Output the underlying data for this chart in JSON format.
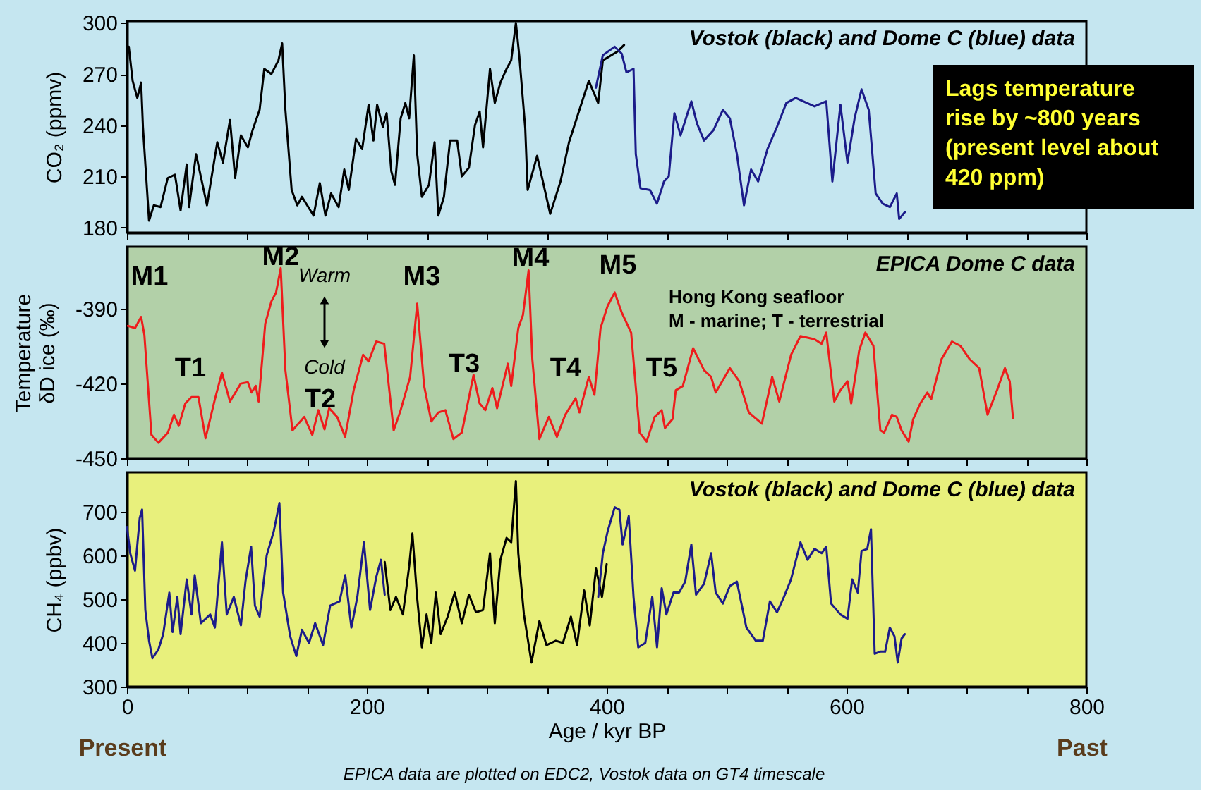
{
  "chart_data": [
    {
      "type": "line",
      "title": "Vostok (black) and Dome C (blue) data",
      "ylabel": "CO₂ (ppmv)",
      "xlim": [
        0,
        800
      ],
      "ylim": [
        177,
        301
      ],
      "xticks": [
        0,
        {
          "value": 50,
          "label": null
        },
        {
          "value": 100,
          "label": null
        },
        {
          "value": 150,
          "label": null
        },
        200,
        {
          "value": 250,
          "label": null
        },
        {
          "value": 300,
          "label": null
        },
        {
          "value": 350,
          "label": null
        },
        400,
        {
          "value": 450,
          "label": null
        },
        {
          "value": 500,
          "label": null
        },
        {
          "value": 550,
          "label": null
        },
        600,
        {
          "value": 650,
          "label": null
        },
        {
          "value": 700,
          "label": null
        },
        {
          "value": 750,
          "label": null
        },
        800
      ],
      "yticks": [
        180,
        210,
        240,
        270,
        300
      ],
      "tick_labels": "y",
      "series": [
        {
          "color": "#000000",
          "x": [
            1.5,
            4.7,
            8.6,
            11.8,
            13.3,
            18.4,
            22.4,
            28,
            34,
            40,
            44.7,
            49.8,
            51.8,
            57.6,
            66.7,
            75.3,
            80,
            85.9,
            90.2,
            95,
            100.8,
            104.7,
            110.6,
            114.5,
            120.4,
            126.3,
            129.4,
            132.1,
            137.3,
            142,
            145.9,
            155.6,
            160.8,
            165.5,
            170.2,
            176.5,
            181.2,
            185,
            191,
            196.1,
            201.5,
            205.5,
            208.6,
            213.3,
            216.5,
            220.4,
            223.5,
            228.2,
            232.1,
            235.3,
            239.2,
            242,
            245.9,
            251.8,
            256.5,
            259.6,
            264.3,
            269.4,
            275.3,
            279.2,
            285.1,
            290.2,
            294.1,
            296.9,
            302.7,
            306.7,
            311.4,
            316.5,
            320.4,
            324.3,
            327.1,
            332.1,
            334.1,
            342,
            352.9,
            361.5,
            368.6,
            377.3,
            385.1,
            392.9,
            396.8,
            408.6,
            414.5
          ],
          "values": [
            286,
            266,
            256,
            265,
            239,
            184,
            193,
            192,
            209,
            211,
            190,
            217,
            192,
            223,
            193,
            230,
            218,
            243,
            209,
            234,
            227,
            237,
            249,
            273,
            270,
            278,
            288,
            249,
            202,
            193,
            198,
            187,
            206,
            187,
            200,
            192,
            214,
            202,
            232,
            226,
            252,
            231,
            252,
            239,
            247,
            213,
            205,
            244,
            253,
            244,
            281,
            223,
            198,
            205,
            230,
            187,
            198,
            231,
            231,
            210,
            215,
            240,
            248,
            227,
            273,
            253,
            265,
            273,
            278,
            300,
            281,
            238,
            202,
            222,
            188,
            207,
            230,
            249,
            266,
            253,
            278,
            283,
            287
          ]
        },
        {
          "color": "#1c1c8a",
          "x": [
            391,
            396.8,
            406.7,
            412.5,
            416.5,
            422.4,
            424.3,
            428.2,
            436.1,
            441.9,
            447.8,
            451.8,
            456.5,
            461.6,
            470.6,
            475.3,
            481.2,
            489,
            496.9,
            502.7,
            508.6,
            514.5,
            520.4,
            526.3,
            534.1,
            542,
            549.8,
            557.6,
            573.3,
            583.1,
            588.2,
            594.9,
            600.8,
            606.7,
            612.5,
            618.5,
            624.3,
            630.2,
            636.1,
            641.9,
            643.9,
            648.6
          ],
          "values": [
            262,
            281,
            286,
            282,
            271,
            273,
            223,
            203,
            202,
            194,
            207,
            210,
            247,
            234,
            254,
            241,
            231,
            237,
            249,
            244,
            223,
            193,
            214,
            207,
            226,
            239,
            253,
            256,
            251,
            254,
            207,
            252,
            218,
            244,
            261,
            249,
            200,
            194,
            192,
            200,
            185,
            189
          ]
        }
      ],
      "annotations": [
        "Lags temperature\nrise by ~800 years\n(present level about\n420 ppm)"
      ]
    },
    {
      "type": "line",
      "title": "EPICA Dome C data",
      "ylabel": "Temperature\nδD ice (‰)",
      "xlim": [
        0,
        800
      ],
      "ylim": [
        -450,
        -365
      ],
      "xticks": [
        0,
        {
          "value": 50,
          "label": null
        },
        {
          "value": 100,
          "label": null
        },
        {
          "value": 150,
          "label": null
        },
        200,
        {
          "value": 250,
          "label": null
        },
        {
          "value": 300,
          "label": null
        },
        {
          "value": 350,
          "label": null
        },
        400,
        {
          "value": 450,
          "label": null
        },
        {
          "value": 500,
          "label": null
        },
        {
          "value": 550,
          "label": null
        },
        600,
        {
          "value": 650,
          "label": null
        },
        {
          "value": 700,
          "label": null
        },
        {
          "value": 750,
          "label": null
        },
        800
      ],
      "yticks": [
        -450,
        -420,
        -390
      ],
      "tick_labels": "y",
      "series": [
        {
          "color": "#ee1c1c",
          "x": [
            0.8,
            6.7,
            11.8,
            14.5,
            20.4,
            26.2,
            34.1,
            39.2,
            43.2,
            48.6,
            53.8,
            59.6,
            65.5,
            73.3,
            79.2,
            85.9,
            94.9,
            100.8,
            103.9,
            107.4,
            109.8,
            115.3,
            120.4,
            124.3,
            128.2,
            132.1,
            138,
            147.8,
            154.5,
            159.6,
            164.7,
            168.6,
            175.3,
            181.9,
            189,
            196.9,
            201.5,
            207.8,
            214.5,
            222.4,
            228.2,
            236.1,
            242,
            247.8,
            253.8,
            259.6,
            265.5,
            272.2,
            279.2,
            289,
            294.1,
            298.8,
            304.7,
            308.6,
            317.6,
            320.4,
            326.3,
            330.2,
            334.9,
            338,
            343.9,
            351.8,
            358.5,
            365.5,
            374.1,
            377.3,
            385.1,
            389.8,
            394.9,
            400.8,
            406.7,
            412.5,
            420.4,
            427.5,
            433.3,
            440,
            445.9,
            448.6,
            454.9,
            457.6,
            463.5,
            472.1,
            481.2,
            487.1,
            490.9,
            502.7,
            510.6,
            518.5,
            529.4,
            538,
            543.9,
            553.8,
            561.6,
            573.3,
            579.2,
            583.1,
            589.8,
            594.9,
            600.8,
            603.9,
            610.6,
            615.7,
            622.4,
            628.2,
            631.4,
            637.9,
            641.9,
            645.9,
            651.8,
            655.6,
            661.5,
            667.4,
            670.6,
            679.2,
            687.9,
            694.9,
            702.7,
            710.6,
            717.6,
            725.5,
            732.1,
            736.1,
            738.8
          ],
          "values": [
            -396.8,
            -397.7,
            -393.2,
            -400.4,
            -440.6,
            -443.8,
            -439.7,
            -432.5,
            -437,
            -428,
            -425.4,
            -425.4,
            -442,
            -426.3,
            -415.6,
            -427.2,
            -420,
            -419.5,
            -423.6,
            -420.9,
            -427.2,
            -395.9,
            -387,
            -383.4,
            -373.6,
            -414.6,
            -438.8,
            -433.4,
            -440.6,
            -430.7,
            -438.4,
            -429.9,
            -433.4,
            -441.4,
            -422.7,
            -408.4,
            -411.1,
            -403.1,
            -404,
            -438.8,
            -430.7,
            -417.3,
            -387.9,
            -421,
            -435.2,
            -431.6,
            -430.7,
            -442.3,
            -439.7,
            -416.5,
            -428,
            -430.7,
            -421.8,
            -429.9,
            -412,
            -421,
            -397.7,
            -392.4,
            -374.5,
            -410.2,
            -442.3,
            -433.4,
            -441.4,
            -432.5,
            -425.9,
            -431.6,
            -417.3,
            -424.5,
            -397.7,
            -388.8,
            -383.4,
            -391.4,
            -399.5,
            -439.7,
            -443.3,
            -433.4,
            -430.7,
            -437.9,
            -434.3,
            -422.7,
            -421,
            -405.8,
            -414.6,
            -417.3,
            -423.6,
            -413.8,
            -419.1,
            -431.6,
            -436.1,
            -417.3,
            -427.2,
            -408.4,
            -400.9,
            -402.2,
            -404,
            -399.5,
            -427.2,
            -422.7,
            -419.1,
            -428,
            -406.6,
            -399.5,
            -404.8,
            -438.8,
            -439.7,
            -432.5,
            -433.4,
            -438.8,
            -443.3,
            -434.3,
            -428,
            -423.6,
            -426.3,
            -410.2,
            -403.1,
            -404.8,
            -410.2,
            -413.8,
            -432.5,
            -422.7,
            -413.8,
            -419.1,
            -433.8
          ]
        }
      ],
      "annotations": [
        "M1",
        "M2",
        "M3",
        "M4",
        "M5",
        "T1",
        "T2",
        "T3",
        "T4",
        "T5",
        "Warm",
        "Cold",
        "Hong Kong seafloor\n M - marine; T - terrestrial"
      ]
    },
    {
      "type": "line",
      "title": "Vostok (black) and Dome C (blue) data",
      "ylabel": "CH₄ (ppbv)",
      "xlabel": "Age / kyr BP",
      "xlim": [
        0,
        800
      ],
      "ylim": [
        300,
        790
      ],
      "xticks": [
        0,
        {
          "value": 50,
          "label": null
        },
        {
          "value": 100,
          "label": null
        },
        {
          "value": 150,
          "label": null
        },
        200,
        {
          "value": 250,
          "label": null
        },
        {
          "value": 300,
          "label": null
        },
        {
          "value": 350,
          "label": null
        },
        400,
        {
          "value": 450,
          "label": null
        },
        {
          "value": 500,
          "label": null
        },
        {
          "value": 550,
          "label": null
        },
        600,
        {
          "value": 650,
          "label": null
        },
        {
          "value": 700,
          "label": null
        },
        {
          "value": 750,
          "label": null
        },
        800
      ],
      "yticks": [
        300,
        400,
        500,
        600,
        700
      ],
      "series": [
        {
          "color": "#1c1c8a",
          "x": [
            0,
            2.7,
            6.7,
            10.6,
            12.6,
            15.3,
            18.4,
            21.2,
            26.2,
            30.2,
            35.3,
            38,
            42,
            44.7,
            49.8,
            53.8,
            56.5,
            61.6,
            69.4,
            73.3,
            79.2,
            83.2,
            89.1,
            95,
            98.8,
            103.5,
            106.7,
            110.6,
            116.5,
            122.4,
            127.1,
            130.2,
            136.1,
            141.2,
            145.9,
            151.8,
            156.9,
            163.5,
            169.4,
            177.3,
            182,
            187.1,
            192.1,
            197.6,
            202.7,
            207.8,
            211.8,
            214.9
          ],
          "values": [
            665,
            605,
            565,
            685,
            705,
            475,
            405,
            365,
            385,
            420,
            515,
            425,
            505,
            420,
            545,
            465,
            555,
            445,
            465,
            435,
            630,
            465,
            505,
            440,
            540,
            620,
            485,
            460,
            600,
            655,
            720,
            515,
            415,
            370,
            430,
            400,
            445,
            395,
            485,
            495,
            555,
            435,
            505,
            630,
            475,
            550,
            590,
            510
          ]
        },
        {
          "color": "#000000",
          "x": [
            214.9,
            219.6,
            224.3,
            230.1,
            235.3,
            238,
            241.9,
            245.9,
            249.8,
            253.8,
            257.6,
            261.6,
            267.4,
            273.3,
            279.2,
            285.1,
            291,
            296.9,
            302.7,
            306.7,
            311.4,
            316.5,
            320.4,
            324.3,
            326.3,
            331,
            337.3,
            343.9,
            349.8,
            357.6,
            363.5,
            370.2,
            375.3,
            381.2,
            385.9,
            391.1,
            396.1,
            400
          ],
          "values": [
            585,
            475,
            505,
            465,
            575,
            650,
            505,
            390,
            465,
            400,
            515,
            420,
            460,
            515,
            445,
            510,
            470,
            475,
            605,
            445,
            590,
            640,
            630,
            770,
            605,
            465,
            355,
            450,
            395,
            405,
            400,
            460,
            395,
            520,
            440,
            570,
            505,
            580
          ]
        },
        {
          "color": "#1c1c8a",
          "x": [
            393,
            396.8,
            400.8,
            406.7,
            410.6,
            413.3,
            418.4,
            422.4,
            426.3,
            432.2,
            438,
            442,
            445.9,
            449.8,
            455.7,
            460.4,
            465.5,
            470.6,
            474.5,
            481.2,
            487.1,
            490.9,
            496.9,
            502.7,
            508.6,
            516.5,
            524.3,
            530.2,
            536.1,
            542,
            547.8,
            553.7,
            561.6,
            567.5,
            573.3,
            579.2,
            583.1,
            587.1,
            594.9,
            600.8,
            604.7,
            609.4,
            612.5,
            617.3,
            620.4,
            623.5,
            628.2,
            632.2,
            636.1,
            640,
            642.7,
            645.9,
            648.6
          ],
          "values": [
            505,
            605,
            655,
            710,
            705,
            625,
            690,
            505,
            390,
            400,
            505,
            390,
            525,
            465,
            515,
            515,
            540,
            625,
            510,
            535,
            605,
            515,
            490,
            530,
            540,
            435,
            405,
            405,
            495,
            470,
            505,
            545,
            630,
            590,
            615,
            605,
            620,
            490,
            465,
            455,
            545,
            515,
            610,
            615,
            660,
            375,
            380,
            380,
            435,
            415,
            355,
            410,
            420
          ]
        }
      ],
      "annotations": [
        "Present",
        "Past",
        "EPICA data are plotted on EDC2, Vostok data on GT4 timescale"
      ]
    }
  ]
}
